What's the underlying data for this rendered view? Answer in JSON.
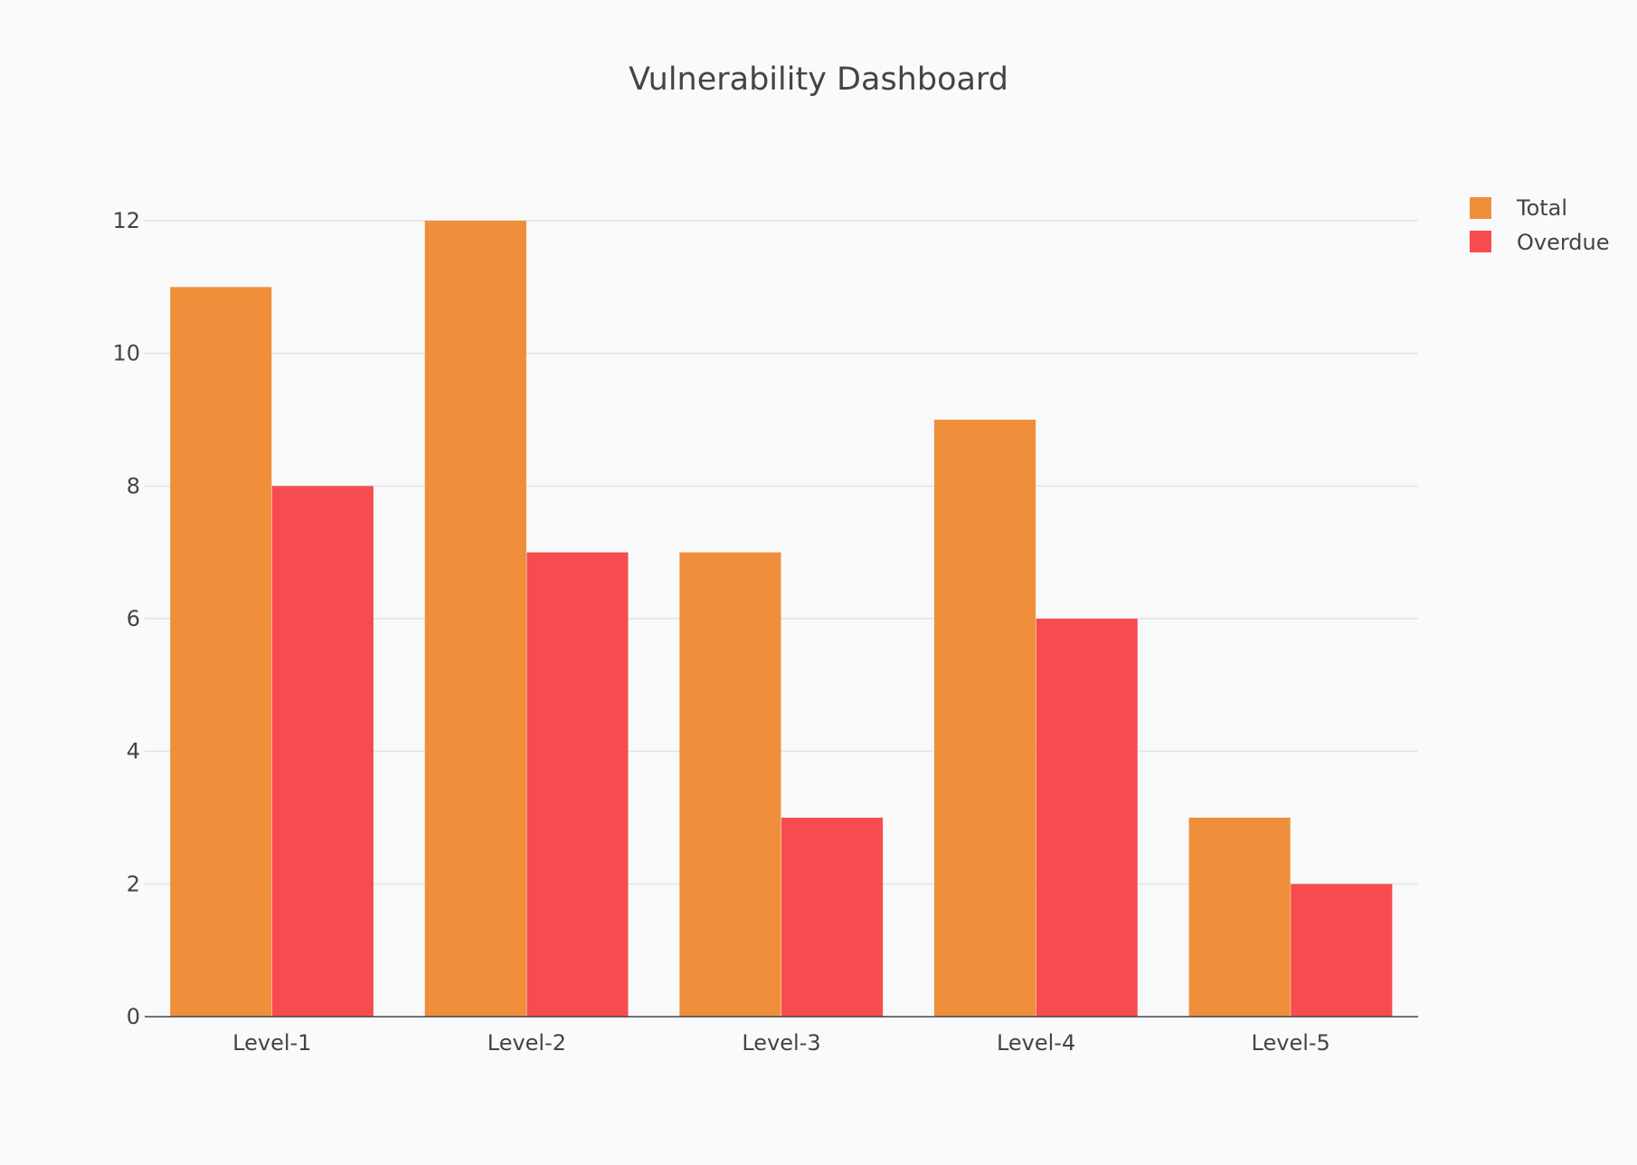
{
  "chart_data": {
    "type": "bar",
    "title": "Vulnerability Dashboard",
    "xlabel": "",
    "ylabel": "",
    "categories": [
      "Level-1",
      "Level-2",
      "Level-3",
      "Level-4",
      "Level-5"
    ],
    "series": [
      {
        "name": "Total",
        "color": "#EF8F3B",
        "values": [
          11,
          12,
          7,
          9,
          3
        ]
      },
      {
        "name": "Overdue",
        "color": "#F74C4F",
        "values": [
          8,
          7,
          3,
          6,
          2
        ]
      }
    ],
    "ylim": [
      0,
      12.6
    ],
    "yticks": [
      "0",
      "2",
      "4",
      "6",
      "8",
      "10",
      "12"
    ],
    "grid": true,
    "legend_position": "top-right",
    "background": "#F9FAFC",
    "plot_background": "#F9F9F9"
  }
}
